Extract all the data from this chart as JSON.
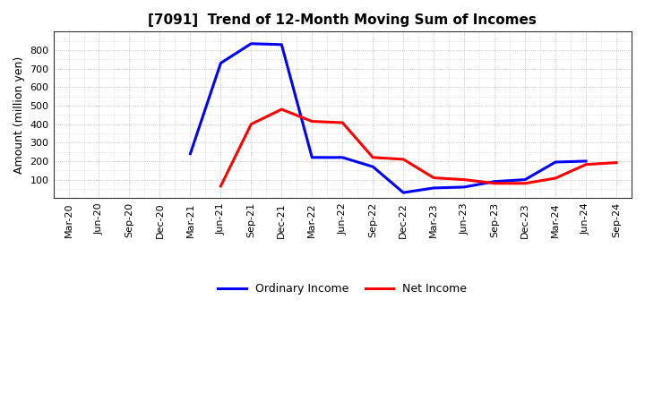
{
  "title": "[7091]  Trend of 12-Month Moving Sum of Incomes",
  "ylabel": "Amount (million yen)",
  "background_color": "#ffffff",
  "grid_color": "#aaaaaa",
  "x_labels": [
    "Mar-20",
    "Jun-20",
    "Sep-20",
    "Dec-20",
    "Mar-21",
    "Jun-21",
    "Sep-21",
    "Dec-21",
    "Mar-22",
    "Jun-22",
    "Sep-22",
    "Dec-22",
    "Mar-23",
    "Jun-23",
    "Sep-23",
    "Dec-23",
    "Mar-24",
    "Jun-24",
    "Sep-24"
  ],
  "ordinary_income": [
    null,
    null,
    null,
    null,
    240,
    730,
    835,
    830,
    220,
    220,
    170,
    30,
    55,
    60,
    90,
    100,
    195,
    200,
    null
  ],
  "net_income": [
    null,
    null,
    null,
    null,
    null,
    65,
    400,
    480,
    415,
    408,
    220,
    210,
    110,
    100,
    80,
    80,
    108,
    182,
    192
  ],
  "ordinary_color": "#0000ff",
  "net_color": "#ff0000",
  "ylim": [
    0,
    900
  ],
  "yticks": [
    100,
    200,
    300,
    400,
    500,
    600,
    700,
    800
  ],
  "legend_ordinary": "Ordinary Income",
  "legend_net": "Net Income",
  "line_width": 2.2,
  "title_fontsize": 11,
  "axis_label_fontsize": 9,
  "tick_fontsize": 8
}
